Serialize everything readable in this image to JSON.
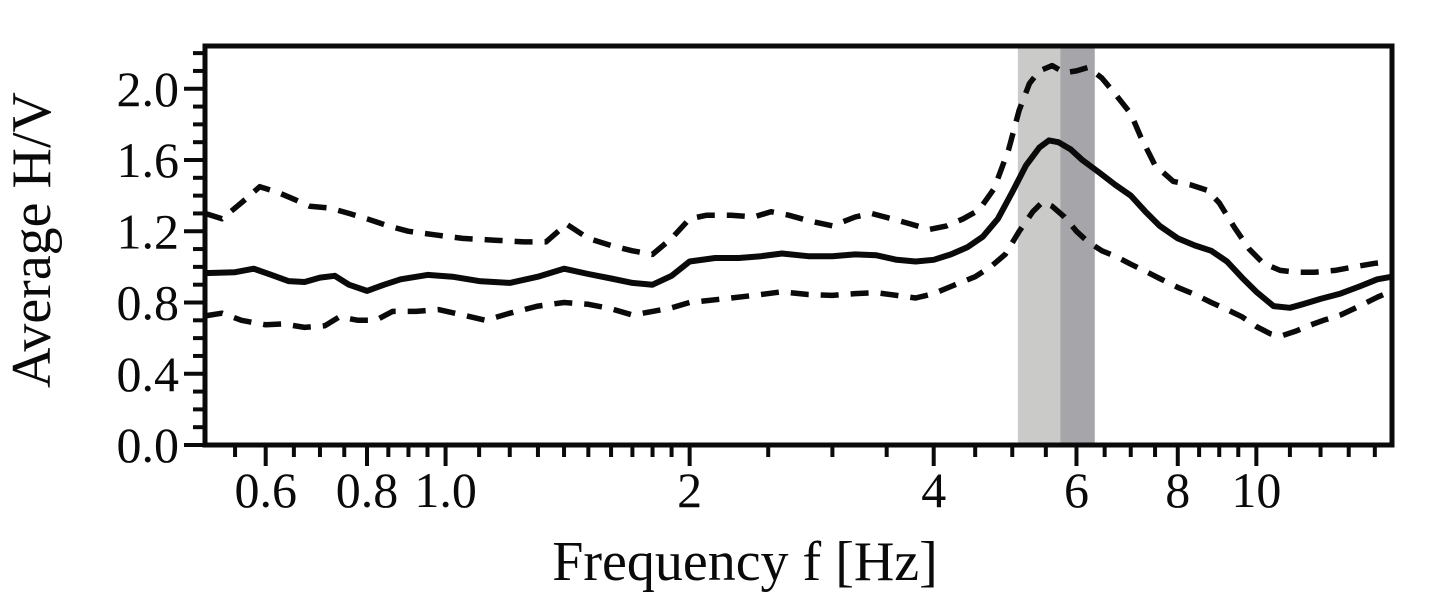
{
  "figure": {
    "xlabel": "Frequency f [Hz]",
    "ylabel": "Average H/V"
  },
  "chart_data": {
    "type": "line",
    "title": "",
    "xlabel": "Frequency f [Hz]",
    "ylabel": "Average H/V",
    "x_scale": "log",
    "grid": false,
    "legend": "none",
    "x_range": [
      0.505,
      14.7
    ],
    "y_range": [
      0,
      2.24
    ],
    "x_ticks_major": [
      0.6,
      0.8,
      1.0,
      2,
      4,
      6,
      8,
      10
    ],
    "x_tick_labels": [
      "0.6",
      "0.8",
      "1.0",
      "2",
      "4",
      "6",
      "8",
      "10"
    ],
    "x_ticks_minor": [
      0.55,
      0.65,
      0.7,
      0.75,
      0.85,
      0.9,
      0.95,
      1.1,
      1.2,
      1.3,
      1.4,
      1.5,
      1.6,
      1.7,
      1.8,
      1.9,
      2.5,
      3,
      3.5,
      4.5,
      5,
      5.5,
      6.5,
      7,
      7.5,
      8.5,
      9,
      9.5,
      11,
      12,
      13,
      14
    ],
    "y_ticks_major": [
      0.0,
      0.4,
      0.8,
      1.2,
      1.6,
      2.0
    ],
    "y_tick_labels": [
      "0.0",
      "0.4",
      "0.8",
      "1.2",
      "1.6",
      "2.0"
    ],
    "y_ticks_minor": [
      0.1,
      0.2,
      0.3,
      0.5,
      0.6,
      0.7,
      0.9,
      1.0,
      1.1,
      1.3,
      1.4,
      1.5,
      1.7,
      1.8,
      1.9,
      2.1,
      2.2
    ],
    "bands": [
      {
        "name": "highlight-band-light",
        "x0": 5.08,
        "x1": 5.73,
        "color": "#cacac8"
      },
      {
        "name": "highlight-band-dark",
        "x0": 5.73,
        "x1": 6.32,
        "color": "#a6a6aa"
      }
    ],
    "series": [
      {
        "name": "average-hv-mean",
        "style": "solid",
        "color": "#0a0a0a",
        "points": [
          [
            0.505,
            0.965
          ],
          [
            0.55,
            0.97
          ],
          [
            0.58,
            0.99
          ],
          [
            0.61,
            0.955
          ],
          [
            0.64,
            0.92
          ],
          [
            0.67,
            0.915
          ],
          [
            0.7,
            0.94
          ],
          [
            0.73,
            0.95
          ],
          [
            0.76,
            0.9
          ],
          [
            0.8,
            0.865
          ],
          [
            0.84,
            0.9
          ],
          [
            0.88,
            0.93
          ],
          [
            0.95,
            0.955
          ],
          [
            1.02,
            0.945
          ],
          [
            1.1,
            0.92
          ],
          [
            1.2,
            0.91
          ],
          [
            1.3,
            0.945
          ],
          [
            1.4,
            0.99
          ],
          [
            1.5,
            0.96
          ],
          [
            1.6,
            0.935
          ],
          [
            1.7,
            0.91
          ],
          [
            1.8,
            0.9
          ],
          [
            1.9,
            0.95
          ],
          [
            2.0,
            1.03
          ],
          [
            2.15,
            1.05
          ],
          [
            2.3,
            1.05
          ],
          [
            2.45,
            1.06
          ],
          [
            2.6,
            1.075
          ],
          [
            2.8,
            1.06
          ],
          [
            3.0,
            1.06
          ],
          [
            3.2,
            1.07
          ],
          [
            3.4,
            1.065
          ],
          [
            3.6,
            1.04
          ],
          [
            3.8,
            1.03
          ],
          [
            4.0,
            1.04
          ],
          [
            4.2,
            1.07
          ],
          [
            4.4,
            1.11
          ],
          [
            4.6,
            1.17
          ],
          [
            4.8,
            1.27
          ],
          [
            5.0,
            1.42
          ],
          [
            5.2,
            1.57
          ],
          [
            5.4,
            1.67
          ],
          [
            5.55,
            1.71
          ],
          [
            5.7,
            1.7
          ],
          [
            5.9,
            1.66
          ],
          [
            6.1,
            1.6
          ],
          [
            6.4,
            1.53
          ],
          [
            6.7,
            1.46
          ],
          [
            7.0,
            1.4
          ],
          [
            7.3,
            1.31
          ],
          [
            7.6,
            1.23
          ],
          [
            8.0,
            1.16
          ],
          [
            8.4,
            1.12
          ],
          [
            8.8,
            1.09
          ],
          [
            9.2,
            1.03
          ],
          [
            9.6,
            0.94
          ],
          [
            10.0,
            0.86
          ],
          [
            10.5,
            0.78
          ],
          [
            11.0,
            0.77
          ],
          [
            11.4,
            0.79
          ],
          [
            12.0,
            0.82
          ],
          [
            12.7,
            0.85
          ],
          [
            13.4,
            0.89
          ],
          [
            14.1,
            0.93
          ],
          [
            14.7,
            0.945
          ]
        ]
      },
      {
        "name": "average-hv-plus-std",
        "style": "dashed",
        "color": "#0a0a0a",
        "points": [
          [
            0.505,
            1.3
          ],
          [
            0.53,
            1.27
          ],
          [
            0.56,
            1.36
          ],
          [
            0.59,
            1.45
          ],
          [
            0.62,
            1.42
          ],
          [
            0.65,
            1.38
          ],
          [
            0.68,
            1.34
          ],
          [
            0.72,
            1.33
          ],
          [
            0.76,
            1.3
          ],
          [
            0.8,
            1.27
          ],
          [
            0.85,
            1.23
          ],
          [
            0.9,
            1.2
          ],
          [
            0.97,
            1.18
          ],
          [
            1.05,
            1.16
          ],
          [
            1.15,
            1.15
          ],
          [
            1.25,
            1.14
          ],
          [
            1.33,
            1.14
          ],
          [
            1.41,
            1.24
          ],
          [
            1.5,
            1.16
          ],
          [
            1.6,
            1.12
          ],
          [
            1.7,
            1.09
          ],
          [
            1.8,
            1.07
          ],
          [
            1.9,
            1.16
          ],
          [
            2.0,
            1.27
          ],
          [
            2.1,
            1.29
          ],
          [
            2.25,
            1.29
          ],
          [
            2.4,
            1.28
          ],
          [
            2.52,
            1.31
          ],
          [
            2.65,
            1.29
          ],
          [
            2.8,
            1.26
          ],
          [
            3.0,
            1.23
          ],
          [
            3.2,
            1.28
          ],
          [
            3.35,
            1.3
          ],
          [
            3.55,
            1.27
          ],
          [
            3.75,
            1.24
          ],
          [
            3.95,
            1.21
          ],
          [
            4.15,
            1.23
          ],
          [
            4.35,
            1.27
          ],
          [
            4.55,
            1.32
          ],
          [
            4.75,
            1.44
          ],
          [
            4.95,
            1.66
          ],
          [
            5.1,
            1.88
          ],
          [
            5.25,
            2.03
          ],
          [
            5.4,
            2.1
          ],
          [
            5.6,
            2.13
          ],
          [
            5.8,
            2.09
          ],
          [
            6.0,
            2.1
          ],
          [
            6.2,
            2.12
          ],
          [
            6.45,
            2.06
          ],
          [
            6.7,
            1.97
          ],
          [
            7.0,
            1.86
          ],
          [
            7.2,
            1.73
          ],
          [
            7.5,
            1.57
          ],
          [
            7.9,
            1.48
          ],
          [
            8.3,
            1.46
          ],
          [
            8.7,
            1.43
          ],
          [
            9.0,
            1.36
          ],
          [
            9.4,
            1.22
          ],
          [
            9.8,
            1.1
          ],
          [
            10.2,
            1.02
          ],
          [
            10.7,
            0.98
          ],
          [
            11.2,
            0.97
          ],
          [
            11.8,
            0.97
          ],
          [
            12.5,
            0.98
          ],
          [
            13.2,
            1.0
          ],
          [
            14.0,
            1.02
          ],
          [
            14.7,
            1.03
          ]
        ]
      },
      {
        "name": "average-hv-minus-std",
        "style": "dashed",
        "color": "#0a0a0a",
        "points": [
          [
            0.505,
            0.725
          ],
          [
            0.53,
            0.74
          ],
          [
            0.56,
            0.7
          ],
          [
            0.6,
            0.675
          ],
          [
            0.63,
            0.68
          ],
          [
            0.67,
            0.66
          ],
          [
            0.71,
            0.67
          ],
          [
            0.74,
            0.72
          ],
          [
            0.78,
            0.7
          ],
          [
            0.82,
            0.7
          ],
          [
            0.86,
            0.75
          ],
          [
            0.92,
            0.75
          ],
          [
            0.98,
            0.76
          ],
          [
            1.05,
            0.73
          ],
          [
            1.12,
            0.7
          ],
          [
            1.2,
            0.74
          ],
          [
            1.3,
            0.78
          ],
          [
            1.4,
            0.8
          ],
          [
            1.5,
            0.79
          ],
          [
            1.6,
            0.765
          ],
          [
            1.7,
            0.73
          ],
          [
            1.8,
            0.75
          ],
          [
            1.9,
            0.77
          ],
          [
            2.0,
            0.8
          ],
          [
            2.2,
            0.82
          ],
          [
            2.4,
            0.84
          ],
          [
            2.6,
            0.86
          ],
          [
            2.8,
            0.845
          ],
          [
            3.0,
            0.84
          ],
          [
            3.2,
            0.85
          ],
          [
            3.4,
            0.855
          ],
          [
            3.6,
            0.84
          ],
          [
            3.8,
            0.825
          ],
          [
            4.0,
            0.85
          ],
          [
            4.2,
            0.89
          ],
          [
            4.5,
            0.945
          ],
          [
            4.7,
            1.0
          ],
          [
            4.9,
            1.07
          ],
          [
            5.1,
            1.2
          ],
          [
            5.3,
            1.31
          ],
          [
            5.45,
            1.365
          ],
          [
            5.6,
            1.34
          ],
          [
            5.8,
            1.28
          ],
          [
            6.0,
            1.2
          ],
          [
            6.2,
            1.14
          ],
          [
            6.45,
            1.09
          ],
          [
            6.7,
            1.06
          ],
          [
            7.0,
            1.015
          ],
          [
            7.3,
            0.975
          ],
          [
            7.6,
            0.935
          ],
          [
            8.0,
            0.885
          ],
          [
            8.4,
            0.845
          ],
          [
            8.8,
            0.8
          ],
          [
            9.2,
            0.76
          ],
          [
            9.6,
            0.72
          ],
          [
            10.0,
            0.665
          ],
          [
            10.4,
            0.625
          ],
          [
            10.7,
            0.61
          ],
          [
            11.2,
            0.64
          ],
          [
            11.6,
            0.67
          ],
          [
            12.1,
            0.7
          ],
          [
            12.7,
            0.73
          ],
          [
            13.4,
            0.78
          ],
          [
            14.1,
            0.83
          ],
          [
            14.7,
            0.865
          ]
        ]
      }
    ]
  }
}
